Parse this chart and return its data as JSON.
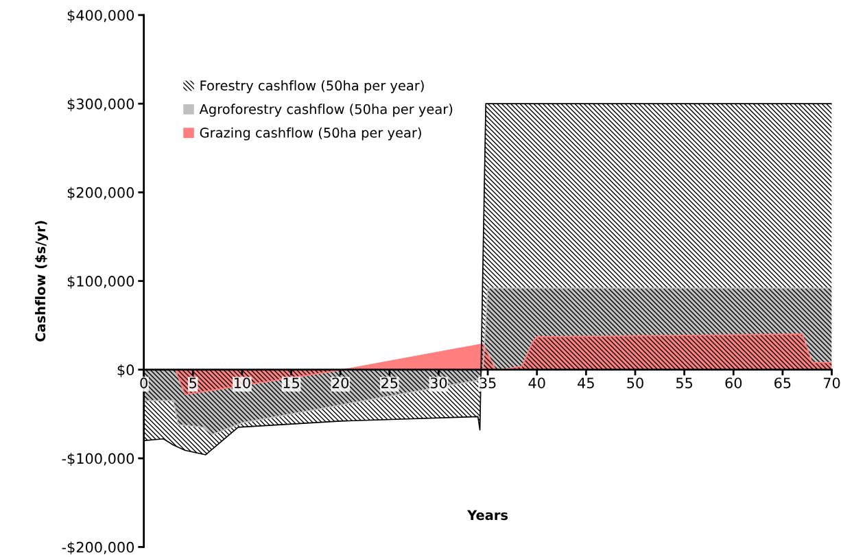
{
  "chart_data": {
    "type": "area",
    "xlabel": "Years",
    "ylabel": "Cashflow ($s/yr)",
    "series": [
      {
        "name": "Forestry cashflow (50ha per year)",
        "color": "#000000",
        "x": [
          0,
          2,
          3,
          4.2,
          6.3,
          9.6,
          20,
          34,
          34.2,
          34.8,
          70
        ],
        "values": [
          -80000,
          -78000,
          -85000,
          -91000,
          -96000,
          -65000,
          -58000,
          -53000,
          -68000,
          300000,
          300000
        ]
      },
      {
        "name": "Agroforestry cashflow (50ha per year)",
        "color": "#bfbfbf",
        "x": [
          0,
          3,
          3.5,
          6,
          7,
          10,
          34,
          34.5,
          35,
          70
        ],
        "values": [
          -35000,
          -35000,
          -62000,
          -65000,
          -73000,
          -60000,
          -12000,
          0,
          92000,
          92000
        ]
      },
      {
        "name": "Grazing cashflow (50ha per year)",
        "color": "#ff7f7f",
        "x": [
          0,
          3.2,
          4.2,
          20.3,
          34,
          34.5,
          35.8,
          37,
          38.5,
          39.5,
          40,
          67,
          68,
          70
        ],
        "values": [
          0,
          0,
          -28000,
          0,
          28000,
          29000,
          0,
          1000,
          4000,
          30000,
          37000,
          40000,
          8000,
          8000
        ]
      }
    ],
    "xlim": [
      0,
      70
    ],
    "xticks": [
      0,
      5,
      10,
      15,
      20,
      25,
      30,
      35,
      40,
      45,
      50,
      55,
      60,
      65,
      70
    ],
    "ylim": [
      -200000,
      400000
    ],
    "yticks": [
      {
        "value": -200000,
        "label": "-$200,000"
      },
      {
        "value": -100000,
        "label": "-$100,000"
      },
      {
        "value": 0,
        "label": "$0"
      },
      {
        "value": 100000,
        "label": "$100,000"
      },
      {
        "value": 200000,
        "label": "$200,000"
      },
      {
        "value": 300000,
        "label": "$300,000"
      },
      {
        "value": 400000,
        "label": "$400,000"
      }
    ],
    "grid": false,
    "legend": "top left"
  }
}
